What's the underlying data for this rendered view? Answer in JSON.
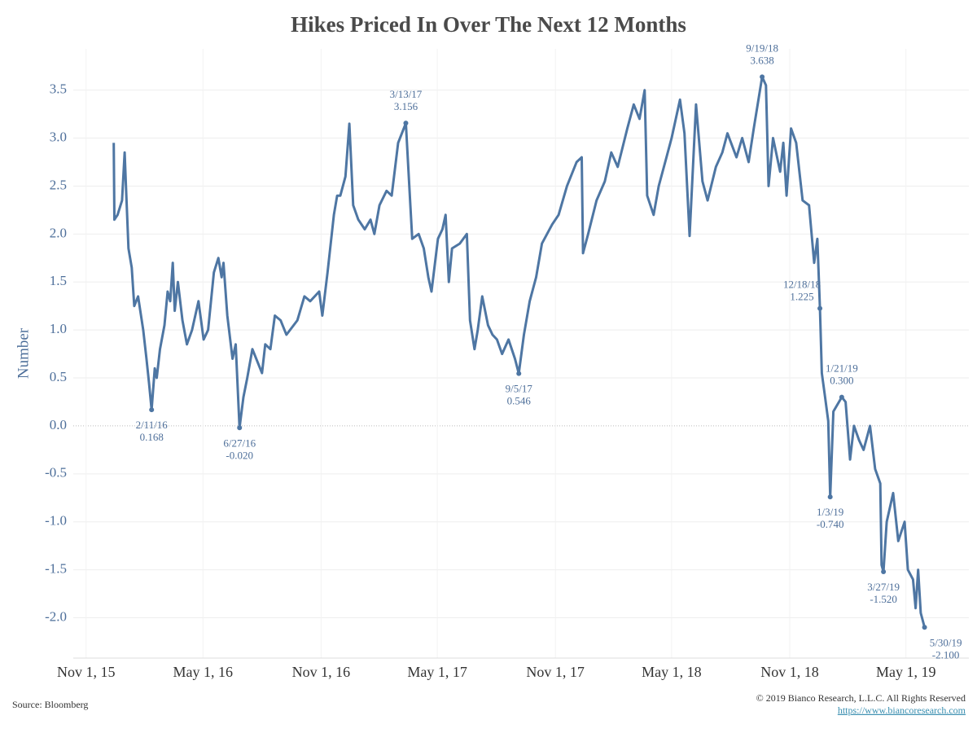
{
  "chart_data": {
    "type": "line",
    "title": "Hikes Priced In Over The Next 12 Months",
    "ylabel": "Number",
    "color": "#4e76a3",
    "grid": true,
    "xlim": [
      "2015-10-12",
      "2019-08-07"
    ],
    "xticks": [
      {
        "value": "2015-11-01",
        "label": "Nov 1, 15"
      },
      {
        "value": "2016-05-01",
        "label": "May 1, 16"
      },
      {
        "value": "2016-11-01",
        "label": "Nov 1, 16"
      },
      {
        "value": "2017-05-01",
        "label": "May 1, 17"
      },
      {
        "value": "2017-11-01",
        "label": "Nov 1, 17"
      },
      {
        "value": "2018-05-01",
        "label": "May 1, 18"
      },
      {
        "value": "2018-11-01",
        "label": "Nov 1, 18"
      },
      {
        "value": "2019-05-01",
        "label": "May 1, 19"
      }
    ],
    "ylim": [
      -2.42,
      3.93
    ],
    "yticks": [
      {
        "value": -2,
        "label": "-2.0"
      },
      -1.5,
      {
        "value": -1,
        "label": "-1.0"
      },
      -0.5,
      {
        "value": 0,
        "label": "0.0"
      },
      0.5,
      {
        "value": 1,
        "label": "1.0"
      },
      1.5,
      {
        "value": 2,
        "label": "2.0"
      },
      2.5,
      {
        "value": 3,
        "label": "3.0"
      },
      3.5
    ],
    "x": [
      "2015-12-14",
      "2015-12-15",
      "2015-12-20",
      "2015-12-27",
      "2015-12-31",
      "2016-01-02",
      "2016-01-06",
      "2016-01-11",
      "2016-01-15",
      "2016-01-21",
      "2016-01-29",
      "2016-02-03",
      "2016-02-07",
      "2016-02-11",
      "2016-02-16",
      "2016-02-19",
      "2016-02-24",
      "2016-03-02",
      "2016-03-07",
      "2016-03-11",
      "2016-03-15",
      "2016-03-18",
      "2016-03-23",
      "2016-03-30",
      "2016-04-06",
      "2016-04-14",
      "2016-04-24",
      "2016-05-02",
      "2016-05-09",
      "2016-05-18",
      "2016-05-25",
      "2016-05-30",
      "2016-06-02",
      "2016-06-08",
      "2016-06-16",
      "2016-06-21",
      "2016-06-27",
      "2016-07-03",
      "2016-07-09",
      "2016-07-17",
      "2016-08-01",
      "2016-08-06",
      "2016-08-14",
      "2016-08-21",
      "2016-08-30",
      "2016-09-08",
      "2016-09-25",
      "2016-10-06",
      "2016-10-15",
      "2016-10-29",
      "2016-11-03",
      "2016-11-11",
      "2016-11-21",
      "2016-11-26",
      "2016-12-01",
      "2016-12-09",
      "2016-12-15",
      "2016-12-21",
      "2016-12-29",
      "2017-01-08",
      "2017-01-17",
      "2017-01-23",
      "2017-01-31",
      "2017-02-11",
      "2017-02-19",
      "2017-03-01",
      "2017-03-13",
      "2017-03-18",
      "2017-03-23",
      "2017-04-02",
      "2017-04-10",
      "2017-04-17",
      "2017-04-22",
      "2017-05-02",
      "2017-05-09",
      "2017-05-14",
      "2017-05-19",
      "2017-05-24",
      "2017-06-05",
      "2017-06-16",
      "2017-06-21",
      "2017-06-28",
      "2017-07-03",
      "2017-07-10",
      "2017-07-19",
      "2017-07-26",
      "2017-08-02",
      "2017-08-10",
      "2017-08-20",
      "2017-08-30",
      "2017-09-05",
      "2017-09-13",
      "2017-09-22",
      "2017-10-02",
      "2017-10-11",
      "2017-10-27",
      "2017-11-06",
      "2017-11-19",
      "2017-12-04",
      "2017-12-12",
      "2017-12-14",
      "2017-12-22",
      "2018-01-04",
      "2018-01-17",
      "2018-01-27",
      "2018-02-06",
      "2018-02-21",
      "2018-03-03",
      "2018-03-12",
      "2018-03-20",
      "2018-03-24",
      "2018-04-03",
      "2018-04-11",
      "2018-04-23",
      "2018-05-01",
      "2018-05-14",
      "2018-05-21",
      "2018-05-29",
      "2018-06-08",
      "2018-06-18",
      "2018-06-26",
      "2018-07-09",
      "2018-07-19",
      "2018-07-27",
      "2018-08-10",
      "2018-08-19",
      "2018-08-29",
      "2018-09-06",
      "2018-09-19",
      "2018-09-25",
      "2018-09-29",
      "2018-10-06",
      "2018-10-17",
      "2018-10-22",
      "2018-10-27",
      "2018-11-03",
      "2018-11-11",
      "2018-11-21",
      "2018-12-01",
      "2018-12-09",
      "2018-12-14",
      "2018-12-18",
      "2018-12-21",
      "2018-12-26",
      "2018-12-31",
      "2019-01-03",
      "2019-01-08",
      "2019-01-21",
      "2019-01-27",
      "2019-02-03",
      "2019-02-09",
      "2019-02-17",
      "2019-02-24",
      "2019-03-06",
      "2019-03-14",
      "2019-03-22",
      "2019-03-24",
      "2019-03-27",
      "2019-04-01",
      "2019-04-11",
      "2019-04-19",
      "2019-04-29",
      "2019-05-04",
      "2019-05-12",
      "2019-05-16",
      "2019-05-20",
      "2019-05-24",
      "2019-05-30"
    ],
    "values": [
      2.95,
      2.15,
      2.2,
      2.35,
      2.85,
      2.5,
      1.85,
      1.65,
      1.25,
      1.35,
      1.0,
      0.7,
      0.45,
      0.168,
      0.6,
      0.5,
      0.8,
      1.05,
      1.4,
      1.3,
      1.7,
      1.2,
      1.5,
      1.1,
      0.85,
      1.0,
      1.3,
      0.9,
      1.0,
      1.6,
      1.75,
      1.55,
      1.7,
      1.15,
      0.7,
      0.85,
      -0.02,
      0.3,
      0.5,
      0.8,
      0.55,
      0.85,
      0.8,
      1.15,
      1.1,
      0.95,
      1.1,
      1.35,
      1.3,
      1.4,
      1.15,
      1.6,
      2.2,
      2.4,
      2.4,
      2.6,
      3.15,
      2.3,
      2.15,
      2.05,
      2.15,
      2.0,
      2.3,
      2.45,
      2.4,
      2.95,
      3.156,
      2.55,
      1.95,
      2.0,
      1.85,
      1.55,
      1.4,
      1.95,
      2.05,
      2.2,
      1.5,
      1.85,
      1.9,
      2.0,
      1.1,
      0.8,
      1.0,
      1.35,
      1.05,
      0.95,
      0.9,
      0.75,
      0.9,
      0.7,
      0.546,
      0.95,
      1.3,
      1.55,
      1.9,
      2.1,
      2.2,
      2.5,
      2.75,
      2.8,
      1.8,
      2.0,
      2.35,
      2.55,
      2.85,
      2.7,
      3.1,
      3.35,
      3.2,
      3.5,
      2.4,
      2.2,
      2.5,
      2.8,
      3.0,
      3.4,
      3.05,
      1.98,
      3.35,
      2.55,
      2.35,
      2.7,
      2.85,
      3.05,
      2.8,
      3.0,
      2.75,
      3.1,
      3.638,
      3.55,
      2.5,
      3.0,
      2.65,
      2.95,
      2.4,
      3.1,
      2.95,
      2.35,
      2.3,
      1.7,
      1.95,
      1.225,
      0.55,
      0.3,
      0.05,
      -0.74,
      0.15,
      0.3,
      0.25,
      -0.35,
      0.0,
      -0.15,
      -0.25,
      0.0,
      -0.45,
      -0.6,
      -1.45,
      -1.52,
      -1.0,
      -0.7,
      -1.2,
      -1.0,
      -1.5,
      -1.6,
      -1.9,
      -1.5,
      -1.95,
      -2.1
    ],
    "annotations": [
      {
        "x": "2016-02-11",
        "value": 0.168,
        "label": "2/11/16",
        "value_label": "0.168"
      },
      {
        "x": "2016-06-27",
        "value": -0.02,
        "label": "6/27/16",
        "value_label": "-0.020"
      },
      {
        "x": "2017-03-13",
        "value": 3.156,
        "label": "3/13/17",
        "value_label": "3.156"
      },
      {
        "x": "2017-09-05",
        "value": 0.546,
        "label": "9/5/17",
        "value_label": "0.546"
      },
      {
        "x": "2018-09-19",
        "value": 3.638,
        "label": "9/19/18",
        "value_label": "3.638"
      },
      {
        "x": "2018-12-18",
        "value": 1.225,
        "label": "12/18/18",
        "value_label": "1.225"
      },
      {
        "x": "2019-01-03",
        "value": -0.74,
        "label": "1/3/19",
        "value_label": "-0.740"
      },
      {
        "x": "2019-01-21",
        "value": 0.3,
        "label": "1/21/19",
        "value_label": "0.300"
      },
      {
        "x": "2019-03-27",
        "value": -1.52,
        "label": "3/27/19",
        "value_label": "-1.520"
      },
      {
        "x": "2019-05-30",
        "value": -2.1,
        "label": "5/30/19",
        "value_label": "-2.100"
      }
    ]
  },
  "footer": {
    "source": "Source: Bloomberg",
    "copyright": "© 2019 Bianco Research, L.L.C. All Rights Reserved",
    "link": "https://www.biancoresearch.com"
  }
}
